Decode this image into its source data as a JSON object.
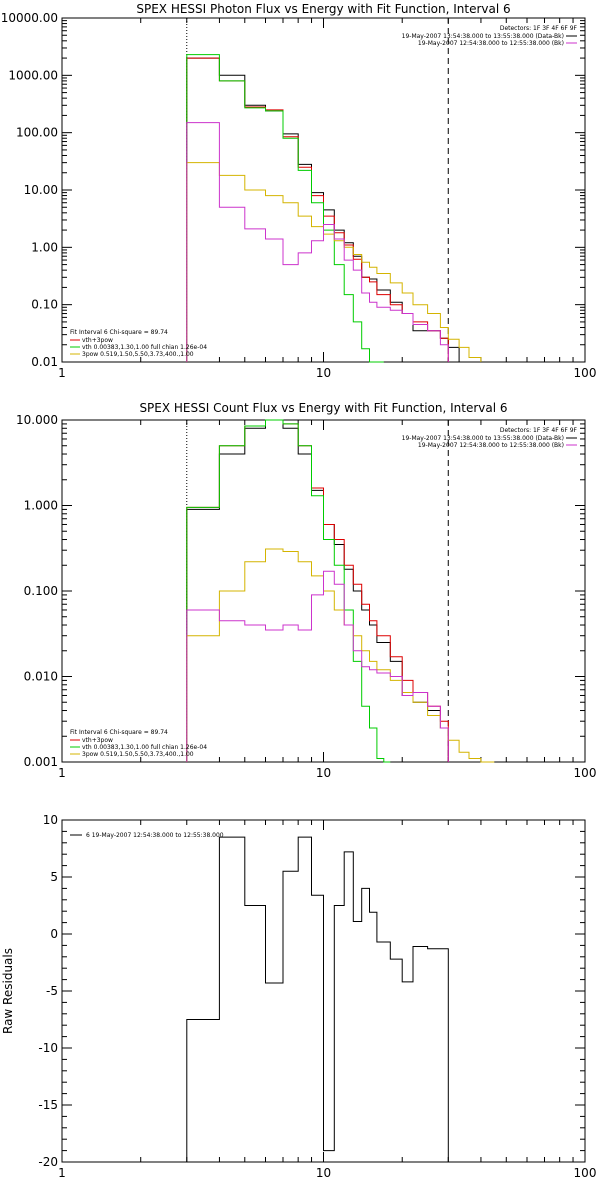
{
  "chart_data": [
    {
      "type": "line",
      "title": "SPEX HESSI Photon Flux vs Energy with Fit Function, Interval 6",
      "xlabel": "",
      "ylabel": "",
      "xscale": "log",
      "yscale": "log",
      "xlim": [
        1,
        100
      ],
      "ylim": [
        0.01,
        10000
      ],
      "xtick_labels": [
        "1",
        "10",
        "100"
      ],
      "xtick_values": [
        1,
        10,
        100
      ],
      "ytick_labels": [
        "10000.00",
        "1000.00",
        "100.00",
        "10.00",
        "1.00",
        "0.10",
        "0.01"
      ],
      "ytick_values": [
        10000,
        1000,
        100,
        10,
        1,
        0.1,
        0.01
      ],
      "vlines": [
        {
          "x": 3,
          "style": "dotted"
        },
        {
          "x": 30,
          "style": "dashed"
        }
      ],
      "legend_top_right": {
        "header": "Detectors: 1F 3F 4F 6F 9F",
        "entries": [
          {
            "label": "19-May-2007 13:54:38.000 to 13:55:38.000 (Data-Bk)",
            "color": "#000000"
          },
          {
            "label": "19-May-2007 12:54:38.000 to 12:55:38.000 (Bk)",
            "color": "#cc33cc"
          }
        ]
      },
      "legend_bottom_left": {
        "header": "Fit Interval  6    Chi-square = 89.74",
        "entries": [
          {
            "label": "vth+3pow",
            "color": "#dd0000"
          },
          {
            "label": "vth 0.00383,1.30,1.00  full chian 1.26e-04",
            "color": "#00cc00"
          },
          {
            "label": "3pow 0.519,1.50,5.50,3.73,400.,1.00",
            "color": "#d4b400"
          }
        ]
      },
      "series": [
        {
          "name": "Data-Bk",
          "color": "#000000",
          "edges": [
            3,
            4,
            5,
            6,
            7,
            8,
            9,
            10,
            11,
            12,
            13,
            14,
            15,
            16,
            18,
            20,
            22,
            25,
            28,
            30,
            33
          ],
          "values": [
            2000,
            1000,
            300,
            240,
            95,
            28,
            9,
            4.5,
            2,
            1.2,
            0.7,
            0.3,
            0.28,
            0.18,
            0.11,
            0.07,
            0.035,
            0.035,
            0.026,
            0.018
          ]
        },
        {
          "name": "vth+3pow",
          "color": "#dd0000",
          "edges": [
            3,
            4,
            5,
            6,
            7,
            8,
            9,
            10,
            11,
            12,
            13,
            14,
            15,
            16,
            18,
            20,
            22,
            25,
            28,
            30
          ],
          "values": [
            2000,
            800,
            280,
            250,
            85,
            25,
            8,
            3.5,
            1.8,
            1.1,
            0.62,
            0.3,
            0.25,
            0.15,
            0.1,
            0.07,
            0.05,
            0.035,
            0.026
          ]
        },
        {
          "name": "vth",
          "color": "#00cc00",
          "edges": [
            3,
            4,
            5,
            6,
            7,
            8,
            9,
            10,
            11,
            12,
            13,
            14,
            15,
            16,
            17
          ],
          "values": [
            2300,
            800,
            270,
            240,
            80,
            22,
            6,
            2,
            0.5,
            0.15,
            0.05,
            0.017,
            0.01,
            0.01
          ]
        },
        {
          "name": "3pow",
          "color": "#d4b400",
          "edges": [
            3,
            4,
            5,
            6,
            7,
            8,
            9,
            10,
            11,
            12,
            13,
            14,
            15,
            16,
            18,
            20,
            22,
            25,
            28,
            30,
            33,
            36,
            40
          ],
          "values": [
            30,
            18,
            10,
            8,
            6,
            3.5,
            2.3,
            1.7,
            1.3,
            1,
            0.75,
            0.55,
            0.45,
            0.35,
            0.24,
            0.16,
            0.1,
            0.07,
            0.04,
            0.025,
            0.018,
            0.012
          ]
        },
        {
          "name": "Bk",
          "color": "#cc33cc",
          "edges": [
            3,
            4,
            5,
            6,
            7,
            8,
            9,
            10,
            11,
            12,
            13,
            14,
            15,
            16,
            18,
            20,
            22,
            25,
            28,
            30
          ],
          "values": [
            150,
            5,
            2.1,
            1.4,
            0.5,
            0.8,
            1.3,
            2.5,
            1.4,
            0.6,
            0.4,
            0.16,
            0.11,
            0.09,
            0.08,
            0.07,
            0.045,
            0.035,
            0.02
          ]
        }
      ]
    },
    {
      "type": "line",
      "title": "SPEX HESSI Count Flux vs Energy with Fit Function, Interval 6",
      "xlabel": "",
      "ylabel": "",
      "xscale": "log",
      "yscale": "log",
      "xlim": [
        1,
        100
      ],
      "ylim": [
        0.001,
        10
      ],
      "xtick_labels": [
        "1",
        "10",
        "100"
      ],
      "xtick_values": [
        1,
        10,
        100
      ],
      "ytick_labels": [
        "10.000",
        "1.000",
        "0.100",
        "0.010",
        "0.001"
      ],
      "ytick_values": [
        10,
        1,
        0.1,
        0.01,
        0.001
      ],
      "vlines": [
        {
          "x": 3,
          "style": "dotted"
        },
        {
          "x": 30,
          "style": "dashed"
        }
      ],
      "legend_top_right": {
        "header": "Detectors: 1F 3F 4F 6F 9F",
        "entries": [
          {
            "label": "19-May-2007 13:54:38.000 to 13:55:38.000 (Data-Bk)",
            "color": "#000000"
          },
          {
            "label": "19-May-2007 12:54:38.000 to 12:55:38.000 (Bk)",
            "color": "#cc33cc"
          }
        ]
      },
      "legend_bottom_left": {
        "header": "Fit Interval  6    Chi-square = 89.74",
        "entries": [
          {
            "label": "vth+3pow",
            "color": "#dd0000"
          },
          {
            "label": "vth 0.00383,1.30,1.00  full chian 1.26e-04",
            "color": "#00cc00"
          },
          {
            "label": "3pow 0.519,1.50,5.50,3.73,400.,1.00",
            "color": "#d4b400"
          }
        ]
      },
      "series": [
        {
          "name": "Data-Bk",
          "color": "#000000",
          "edges": [
            3,
            4,
            5,
            6,
            7,
            8,
            9,
            10,
            11,
            12,
            13,
            14,
            15,
            16,
            18,
            20,
            22,
            25,
            28,
            30
          ],
          "values": [
            0.9,
            4,
            8,
            10,
            8,
            4,
            1.5,
            0.6,
            0.35,
            0.18,
            0.1,
            0.06,
            0.04,
            0.025,
            0.015,
            0.006,
            0.005,
            0.004,
            0.0025
          ]
        },
        {
          "name": "vth+3pow",
          "color": "#dd0000",
          "edges": [
            3,
            4,
            5,
            6,
            7,
            8,
            9,
            10,
            11,
            12,
            13,
            14,
            15,
            16,
            18,
            20,
            22,
            25,
            28,
            30
          ],
          "values": [
            0.95,
            5,
            8.5,
            10,
            9,
            5,
            1.6,
            0.6,
            0.4,
            0.2,
            0.12,
            0.07,
            0.045,
            0.03,
            0.017,
            0.009,
            0.0065,
            0.0045,
            0.003
          ]
        },
        {
          "name": "vth",
          "color": "#00cc00",
          "edges": [
            3,
            4,
            5,
            6,
            7,
            8,
            9,
            10,
            11,
            12,
            13,
            14,
            15,
            16,
            17,
            18
          ],
          "values": [
            0.95,
            5,
            8.5,
            10,
            9,
            5,
            1.3,
            0.4,
            0.2,
            0.06,
            0.015,
            0.0045,
            0.0025,
            0.0011,
            0.001
          ]
        },
        {
          "name": "3pow",
          "color": "#d4b400",
          "edges": [
            3,
            4,
            5,
            6,
            7,
            8,
            9,
            10,
            11,
            12,
            13,
            14,
            15,
            16,
            18,
            20,
            22,
            25,
            28,
            30,
            33,
            36,
            40,
            45
          ],
          "values": [
            0.03,
            0.1,
            0.22,
            0.31,
            0.29,
            0.22,
            0.15,
            0.1,
            0.06,
            0.04,
            0.03,
            0.02,
            0.015,
            0.012,
            0.009,
            0.0065,
            0.005,
            0.0035,
            0.0025,
            0.0018,
            0.0013,
            0.0011,
            0.001
          ]
        },
        {
          "name": "Bk",
          "color": "#cc33cc",
          "edges": [
            3,
            4,
            5,
            6,
            7,
            8,
            9,
            10,
            11,
            12,
            13,
            14,
            15,
            16,
            18,
            20,
            22,
            25,
            28,
            30
          ],
          "values": [
            0.06,
            0.045,
            0.04,
            0.035,
            0.04,
            0.035,
            0.09,
            0.17,
            0.12,
            0.04,
            0.02,
            0.013,
            0.012,
            0.011,
            0.01,
            0.006,
            0.0065,
            0.0045,
            0.0025
          ]
        }
      ]
    },
    {
      "type": "line",
      "title": "",
      "xlabel": "",
      "ylabel": "Raw Residuals",
      "xscale": "log",
      "yscale": "linear",
      "xlim": [
        1,
        100
      ],
      "ylim": [
        -20,
        10
      ],
      "xtick_labels": [
        "1",
        "10",
        "100"
      ],
      "xtick_values": [
        1,
        10,
        100
      ],
      "ytick_labels": [
        "10",
        "5",
        "0",
        "-5",
        "-10",
        "-15",
        "-20"
      ],
      "ytick_values": [
        10,
        5,
        0,
        -5,
        -10,
        -15,
        -20
      ],
      "legend_top_left": {
        "entries": [
          {
            "label": "6  19-May-2007 12:54:38.000 to 12:55:38.000",
            "color": "#000000"
          }
        ]
      },
      "series": [
        {
          "name": "6  19-May-2007 12:54:38.000 to 12:55:38.000",
          "color": "#000000",
          "edges": [
            3,
            4,
            5,
            6,
            7,
            8,
            9,
            10,
            11,
            12,
            13,
            14,
            15,
            16,
            18,
            20,
            22,
            25,
            28,
            30
          ],
          "values": [
            -7.5,
            8.5,
            2.5,
            -4.3,
            5.5,
            8.5,
            3.4,
            -19,
            2.5,
            7.2,
            1.1,
            4,
            1.9,
            -0.7,
            -2.2,
            -4.2,
            -1.1,
            -1.3,
            -1.3
          ]
        }
      ]
    }
  ]
}
